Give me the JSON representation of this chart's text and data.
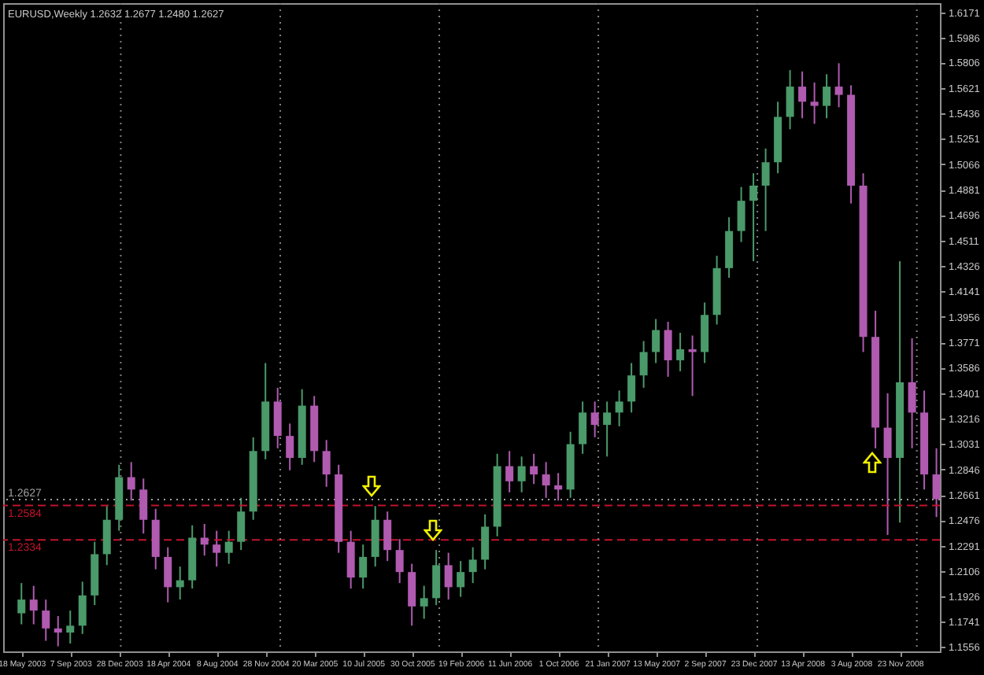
{
  "chart_data": {
    "type": "candlestick",
    "title": "EURUSD,Weekly 1.2632 1.2677 1.2480 1.2627",
    "x": [
      "2003-05-18",
      "2003-06-15",
      "2003-07-13",
      "2003-08-10",
      "2003-09-07",
      "2003-10-05",
      "2003-11-02",
      "2003-11-30",
      "2003-12-28",
      "2004-01-25",
      "2004-02-22",
      "2004-03-21",
      "2004-04-18",
      "2004-05-16",
      "2004-06-13",
      "2004-07-11",
      "2004-08-08",
      "2004-09-05",
      "2004-10-03",
      "2004-10-31",
      "2004-11-28",
      "2004-12-26",
      "2005-01-23",
      "2005-02-20",
      "2005-03-20",
      "2005-04-17",
      "2005-05-15",
      "2005-06-12",
      "2005-07-10",
      "2005-08-07",
      "2005-09-04",
      "2005-10-02",
      "2005-10-30",
      "2005-11-27",
      "2005-12-25",
      "2006-01-22",
      "2006-02-19",
      "2006-03-19",
      "2006-04-16",
      "2006-05-14",
      "2006-06-11",
      "2006-07-09",
      "2006-08-06",
      "2006-09-03",
      "2006-10-01",
      "2006-10-29",
      "2006-11-26",
      "2006-12-24",
      "2007-01-21",
      "2007-02-18",
      "2007-03-18",
      "2007-04-15",
      "2007-05-13",
      "2007-06-10",
      "2007-07-08",
      "2007-08-05",
      "2007-09-02",
      "2007-09-30",
      "2007-10-28",
      "2007-11-25",
      "2007-12-23",
      "2008-01-20",
      "2008-02-17",
      "2008-03-16",
      "2008-04-13",
      "2008-05-11",
      "2008-06-08",
      "2008-07-06",
      "2008-08-03",
      "2008-08-31",
      "2008-09-28",
      "2008-10-26",
      "2008-11-23",
      "2008-12-21",
      "2009-01-18",
      "2009-02-15"
    ],
    "ohlc": [
      [
        1.18,
        1.202,
        1.172,
        1.19
      ],
      [
        1.19,
        1.2,
        1.172,
        1.182
      ],
      [
        1.182,
        1.19,
        1.16,
        1.169
      ],
      [
        1.169,
        1.178,
        1.156,
        1.166
      ],
      [
        1.166,
        1.182,
        1.158,
        1.171
      ],
      [
        1.171,
        1.203,
        1.165,
        1.193
      ],
      [
        1.193,
        1.232,
        1.186,
        1.223
      ],
      [
        1.223,
        1.258,
        1.215,
        1.248
      ],
      [
        1.248,
        1.288,
        1.24,
        1.279
      ],
      [
        1.279,
        1.29,
        1.262,
        1.27
      ],
      [
        1.27,
        1.278,
        1.238,
        1.248
      ],
      [
        1.248,
        1.256,
        1.212,
        1.221
      ],
      [
        1.221,
        1.228,
        1.188,
        1.199
      ],
      [
        1.199,
        1.214,
        1.19,
        1.204
      ],
      [
        1.204,
        1.244,
        1.198,
        1.235
      ],
      [
        1.235,
        1.245,
        1.222,
        1.23
      ],
      [
        1.23,
        1.24,
        1.214,
        1.224
      ],
      [
        1.224,
        1.24,
        1.216,
        1.232
      ],
      [
        1.232,
        1.264,
        1.226,
        1.254
      ],
      [
        1.254,
        1.308,
        1.248,
        1.298
      ],
      [
        1.298,
        1.362,
        1.292,
        1.334
      ],
      [
        1.334,
        1.344,
        1.3,
        1.309
      ],
      [
        1.309,
        1.318,
        1.284,
        1.293
      ],
      [
        1.293,
        1.343,
        1.288,
        1.331
      ],
      [
        1.331,
        1.338,
        1.29,
        1.298
      ],
      [
        1.298,
        1.306,
        1.272,
        1.281
      ],
      [
        1.281,
        1.288,
        1.224,
        1.232
      ],
      [
        1.232,
        1.24,
        1.198,
        1.206
      ],
      [
        1.206,
        1.23,
        1.198,
        1.221
      ],
      [
        1.221,
        1.258,
        1.214,
        1.248
      ],
      [
        1.248,
        1.254,
        1.218,
        1.226
      ],
      [
        1.226,
        1.234,
        1.202,
        1.21
      ],
      [
        1.21,
        1.216,
        1.171,
        1.185
      ],
      [
        1.185,
        1.2,
        1.176,
        1.191
      ],
      [
        1.191,
        1.226,
        1.186,
        1.215
      ],
      [
        1.215,
        1.224,
        1.19,
        1.199
      ],
      [
        1.199,
        1.218,
        1.192,
        1.21
      ],
      [
        1.21,
        1.228,
        1.202,
        1.219
      ],
      [
        1.219,
        1.252,
        1.212,
        1.243
      ],
      [
        1.243,
        1.296,
        1.236,
        1.287
      ],
      [
        1.287,
        1.298,
        1.268,
        1.276
      ],
      [
        1.276,
        1.294,
        1.268,
        1.287
      ],
      [
        1.287,
        1.296,
        1.274,
        1.281
      ],
      [
        1.281,
        1.29,
        1.264,
        1.273
      ],
      [
        1.273,
        1.282,
        1.262,
        1.27
      ],
      [
        1.27,
        1.312,
        1.264,
        1.303
      ],
      [
        1.303,
        1.334,
        1.296,
        1.326
      ],
      [
        1.326,
        1.334,
        1.308,
        1.317
      ],
      [
        1.317,
        1.334,
        1.294,
        1.326
      ],
      [
        1.326,
        1.342,
        1.316,
        1.334
      ],
      [
        1.334,
        1.362,
        1.326,
        1.353
      ],
      [
        1.353,
        1.378,
        1.344,
        1.37
      ],
      [
        1.37,
        1.394,
        1.362,
        1.386
      ],
      [
        1.386,
        1.392,
        1.352,
        1.364
      ],
      [
        1.364,
        1.384,
        1.356,
        1.372
      ],
      [
        1.372,
        1.382,
        1.338,
        1.37
      ],
      [
        1.37,
        1.406,
        1.362,
        1.397
      ],
      [
        1.397,
        1.44,
        1.39,
        1.431
      ],
      [
        1.431,
        1.468,
        1.424,
        1.458
      ],
      [
        1.458,
        1.49,
        1.45,
        1.48
      ],
      [
        1.48,
        1.5,
        1.436,
        1.491
      ],
      [
        1.491,
        1.518,
        1.458,
        1.508
      ],
      [
        1.508,
        1.552,
        1.5,
        1.541
      ],
      [
        1.541,
        1.575,
        1.532,
        1.563
      ],
      [
        1.563,
        1.574,
        1.54,
        1.552
      ],
      [
        1.552,
        1.566,
        1.536,
        1.549
      ],
      [
        1.549,
        1.572,
        1.54,
        1.563
      ],
      [
        1.563,
        1.58,
        1.548,
        1.557
      ],
      [
        1.557,
        1.564,
        1.478,
        1.491
      ],
      [
        1.491,
        1.5,
        1.37,
        1.381
      ],
      [
        1.381,
        1.4,
        1.3,
        1.315
      ],
      [
        1.315,
        1.34,
        1.237,
        1.293
      ],
      [
        1.293,
        1.436,
        1.246,
        1.348
      ],
      [
        1.348,
        1.38,
        1.3,
        1.326
      ],
      [
        1.326,
        1.342,
        1.27,
        1.281
      ],
      [
        1.281,
        1.3,
        1.25,
        1.263
      ]
    ],
    "colors": [
      "#4a9a6a",
      "#b05ab0",
      "#b05ab0",
      "#b05ab0",
      "#4a9a6a",
      "#4a9a6a",
      "#4a9a6a",
      "#4a9a6a",
      "#4a9a6a",
      "#b05ab0",
      "#b05ab0",
      "#b05ab0",
      "#b05ab0",
      "#4a9a6a",
      "#4a9a6a",
      "#b05ab0",
      "#b05ab0",
      "#4a9a6a",
      "#4a9a6a",
      "#4a9a6a",
      "#4a9a6a",
      "#b05ab0",
      "#b05ab0",
      "#4a9a6a",
      "#b05ab0",
      "#b05ab0",
      "#b05ab0",
      "#b05ab0",
      "#4a9a6a",
      "#4a9a6a",
      "#b05ab0",
      "#b05ab0",
      "#b05ab0",
      "#4a9a6a",
      "#4a9a6a",
      "#b05ab0",
      "#4a9a6a",
      "#4a9a6a",
      "#4a9a6a",
      "#4a9a6a",
      "#b05ab0",
      "#4a9a6a",
      "#b05ab0",
      "#b05ab0",
      "#b05ab0",
      "#4a9a6a",
      "#4a9a6a",
      "#b05ab0",
      "#4a9a6a",
      "#4a9a6a",
      "#4a9a6a",
      "#4a9a6a",
      "#4a9a6a",
      "#b05ab0",
      "#4a9a6a",
      "#b05ab0",
      "#4a9a6a",
      "#4a9a6a",
      "#4a9a6a",
      "#4a9a6a",
      "#4a9a6a",
      "#4a9a6a",
      "#4a9a6a",
      "#4a9a6a",
      "#b05ab0",
      "#b05ab0",
      "#4a9a6a",
      "#b05ab0",
      "#b05ab0",
      "#b05ab0",
      "#b05ab0",
      "#b05ab0",
      "#4a9a6a",
      "#b05ab0",
      "#b05ab0",
      "#b05ab0"
    ],
    "xlim": [
      "2003-04-06",
      "2009-02-23"
    ],
    "xticks": [
      {
        "value": "2003-05-18",
        "label": "18 May 2003"
      },
      {
        "value": "2003-09-07",
        "label": "7 Sep 2003"
      },
      {
        "value": "2003-12-28",
        "label": "28 Dec 2003"
      },
      {
        "value": "2004-04-18",
        "label": "18 Apr 2004"
      },
      {
        "value": "2004-08-08",
        "label": "8 Aug 2004"
      },
      {
        "value": "2004-11-28",
        "label": "28 Nov 2004"
      },
      {
        "value": "2005-03-20",
        "label": "20 Mar 2005"
      },
      {
        "value": "2005-07-10",
        "label": "10 Jul 2005"
      },
      {
        "value": "2005-10-30",
        "label": "30 Oct 2005"
      },
      {
        "value": "2006-02-19",
        "label": "19 Feb 2006"
      },
      {
        "value": "2006-06-11",
        "label": "11 Jun 2006"
      },
      {
        "value": "2006-10-01",
        "label": "1 Oct 2006"
      },
      {
        "value": "2007-01-21",
        "label": "21 Jan 2007"
      },
      {
        "value": "2007-05-13",
        "label": "13 May 2007"
      },
      {
        "value": "2007-09-02",
        "label": "2 Sep 2007"
      },
      {
        "value": "2007-12-23",
        "label": "23 Dec 2007"
      },
      {
        "value": "2008-04-13",
        "label": "13 Apr 2008"
      },
      {
        "value": "2008-08-03",
        "label": "3 Aug 2008"
      },
      {
        "value": "2008-11-23",
        "label": "23 Nov 2008"
      }
    ],
    "ylim": [
      1.1523,
      1.6237
    ],
    "yticks": [
      1.1556,
      1.1741,
      1.1926,
      1.2106,
      1.2291,
      1.2476,
      1.2661,
      1.2846,
      1.3031,
      1.3216,
      1.3401,
      1.3586,
      1.3771,
      1.3956,
      1.4141,
      1.4326,
      1.4511,
      1.4696,
      1.4881,
      1.5066,
      1.5251,
      1.5436,
      1.5621,
      1.5806,
      1.5986,
      1.6171
    ],
    "ref_lines": [
      {
        "axis": "y",
        "value": 1.2627,
        "label": "1.2627",
        "color": "#a0a0a0",
        "line_style": "dotted"
      },
      {
        "axis": "y",
        "value": 1.2584,
        "label": "1.2584",
        "color": "#c0142c",
        "line_style": "dashed"
      },
      {
        "axis": "y",
        "value": 1.2334,
        "label": "1.2334",
        "color": "#c0142c",
        "line_style": "dashed"
      },
      {
        "axis": "x",
        "value": "2004-01-01",
        "color": "#808080",
        "line_style": "dotted"
      },
      {
        "axis": "x",
        "value": "2005-01-01",
        "color": "#808080",
        "line_style": "dotted"
      },
      {
        "axis": "x",
        "value": "2006-01-01",
        "color": "#808080",
        "line_style": "dotted"
      },
      {
        "axis": "x",
        "value": "2007-01-01",
        "color": "#808080",
        "line_style": "dotted"
      },
      {
        "axis": "x",
        "value": "2008-01-01",
        "color": "#808080",
        "line_style": "dotted"
      },
      {
        "axis": "x",
        "value": "2009-01-01",
        "color": "#808080",
        "line_style": "dotted"
      }
    ]
  }
}
